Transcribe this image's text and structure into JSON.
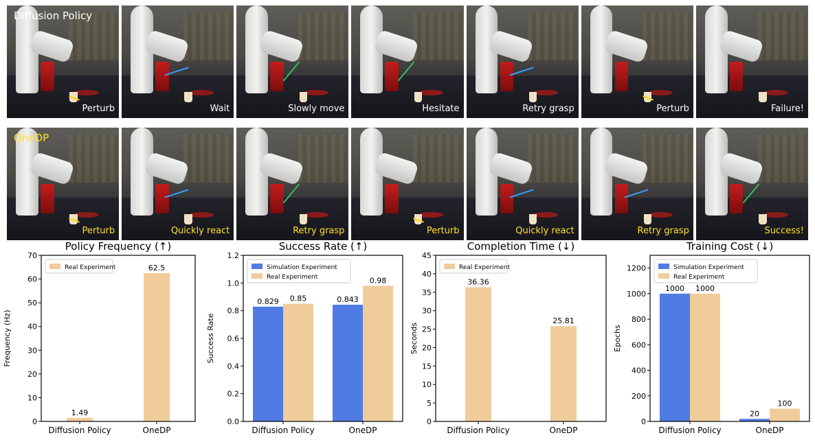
{
  "colors": {
    "sim": "#4f7be3",
    "real": "#f1cc9b",
    "axis": "#000000"
  },
  "frames": {
    "row1_label": "Diffusion Policy",
    "row2_label": "OneDP",
    "row1": [
      "Perturb",
      "Wait",
      "Slowly move",
      "Hesitate",
      "Retry grasp",
      "Perturb",
      "Failure!"
    ],
    "row2": [
      "Perturb",
      "Quickly react",
      "Retry grasp",
      "Perturb",
      "Quickly react",
      "Retry grasp",
      "Success!"
    ]
  },
  "chart_data": [
    {
      "type": "bar",
      "title": "Policy Frequency (↑)",
      "ylabel": "Frequency (Hz)",
      "xlabel": "",
      "categories": [
        "Diffusion Policy",
        "OneDP"
      ],
      "ylim": [
        0,
        70
      ],
      "yticks": [
        0,
        10,
        20,
        30,
        40,
        50,
        60,
        70
      ],
      "ytick_labels": [
        "0",
        "10",
        "20",
        "30",
        "40",
        "50",
        "60",
        "70"
      ],
      "legend": [
        "Real Experiment"
      ],
      "legend_position": "top-left",
      "series": [
        {
          "name": "Real Experiment",
          "color": "real",
          "values": [
            1.49,
            62.5
          ],
          "labels": [
            "1.49",
            "62.5"
          ]
        }
      ]
    },
    {
      "type": "bar",
      "title": "Success Rate (↑)",
      "ylabel": "Success Rate",
      "xlabel": "",
      "categories": [
        "Diffusion Policy",
        "OneDP"
      ],
      "ylim": [
        0,
        1.2
      ],
      "yticks": [
        0,
        0.2,
        0.4,
        0.6,
        0.8,
        1.0,
        1.2
      ],
      "ytick_labels": [
        "0.0",
        "0.2",
        "0.4",
        "0.6",
        "0.8",
        "1.0",
        "1.2"
      ],
      "legend": [
        "Simulation Experiment",
        "Real Experiment"
      ],
      "legend_position": "top-left",
      "series": [
        {
          "name": "Simulation Experiment",
          "color": "sim",
          "values": [
            0.829,
            0.843
          ],
          "labels": [
            "0.829",
            "0.843"
          ]
        },
        {
          "name": "Real Experiment",
          "color": "real",
          "values": [
            0.85,
            0.98
          ],
          "labels": [
            "0.85",
            "0.98"
          ]
        }
      ]
    },
    {
      "type": "bar",
      "title": "Completion Time (↓)",
      "ylabel": "Seconds",
      "xlabel": "",
      "categories": [
        "Diffusion Policy",
        "OneDP"
      ],
      "ylim": [
        0,
        45
      ],
      "yticks": [
        0,
        5,
        10,
        15,
        20,
        25,
        30,
        35,
        40,
        45
      ],
      "ytick_labels": [
        "0",
        "5",
        "10",
        "15",
        "20",
        "25",
        "30",
        "35",
        "40",
        "45"
      ],
      "legend": [
        "Real Experiment"
      ],
      "legend_position": "top-left",
      "series": [
        {
          "name": "Real Experiment",
          "color": "real",
          "values": [
            36.36,
            25.81
          ],
          "labels": [
            "36.36",
            "25.81"
          ]
        }
      ]
    },
    {
      "type": "bar",
      "title": "Training Cost (↓)",
      "ylabel": "Epochs",
      "xlabel": "",
      "categories": [
        "Diffusion Policy",
        "OneDP"
      ],
      "ylim": [
        0,
        1300
      ],
      "yticks": [
        0,
        200,
        400,
        600,
        800,
        1000,
        1200
      ],
      "ytick_labels": [
        "0",
        "200",
        "400",
        "600",
        "800",
        "1000",
        "1200"
      ],
      "legend": [
        "Simulation Experiment",
        "Real Experiment"
      ],
      "legend_position": "top-left",
      "series": [
        {
          "name": "Simulation Experiment",
          "color": "sim",
          "values": [
            1000,
            20
          ],
          "labels": [
            "1000",
            "20"
          ]
        },
        {
          "name": "Real Experiment",
          "color": "real",
          "values": [
            1000,
            100
          ],
          "labels": [
            "1000",
            "100"
          ]
        }
      ]
    }
  ]
}
